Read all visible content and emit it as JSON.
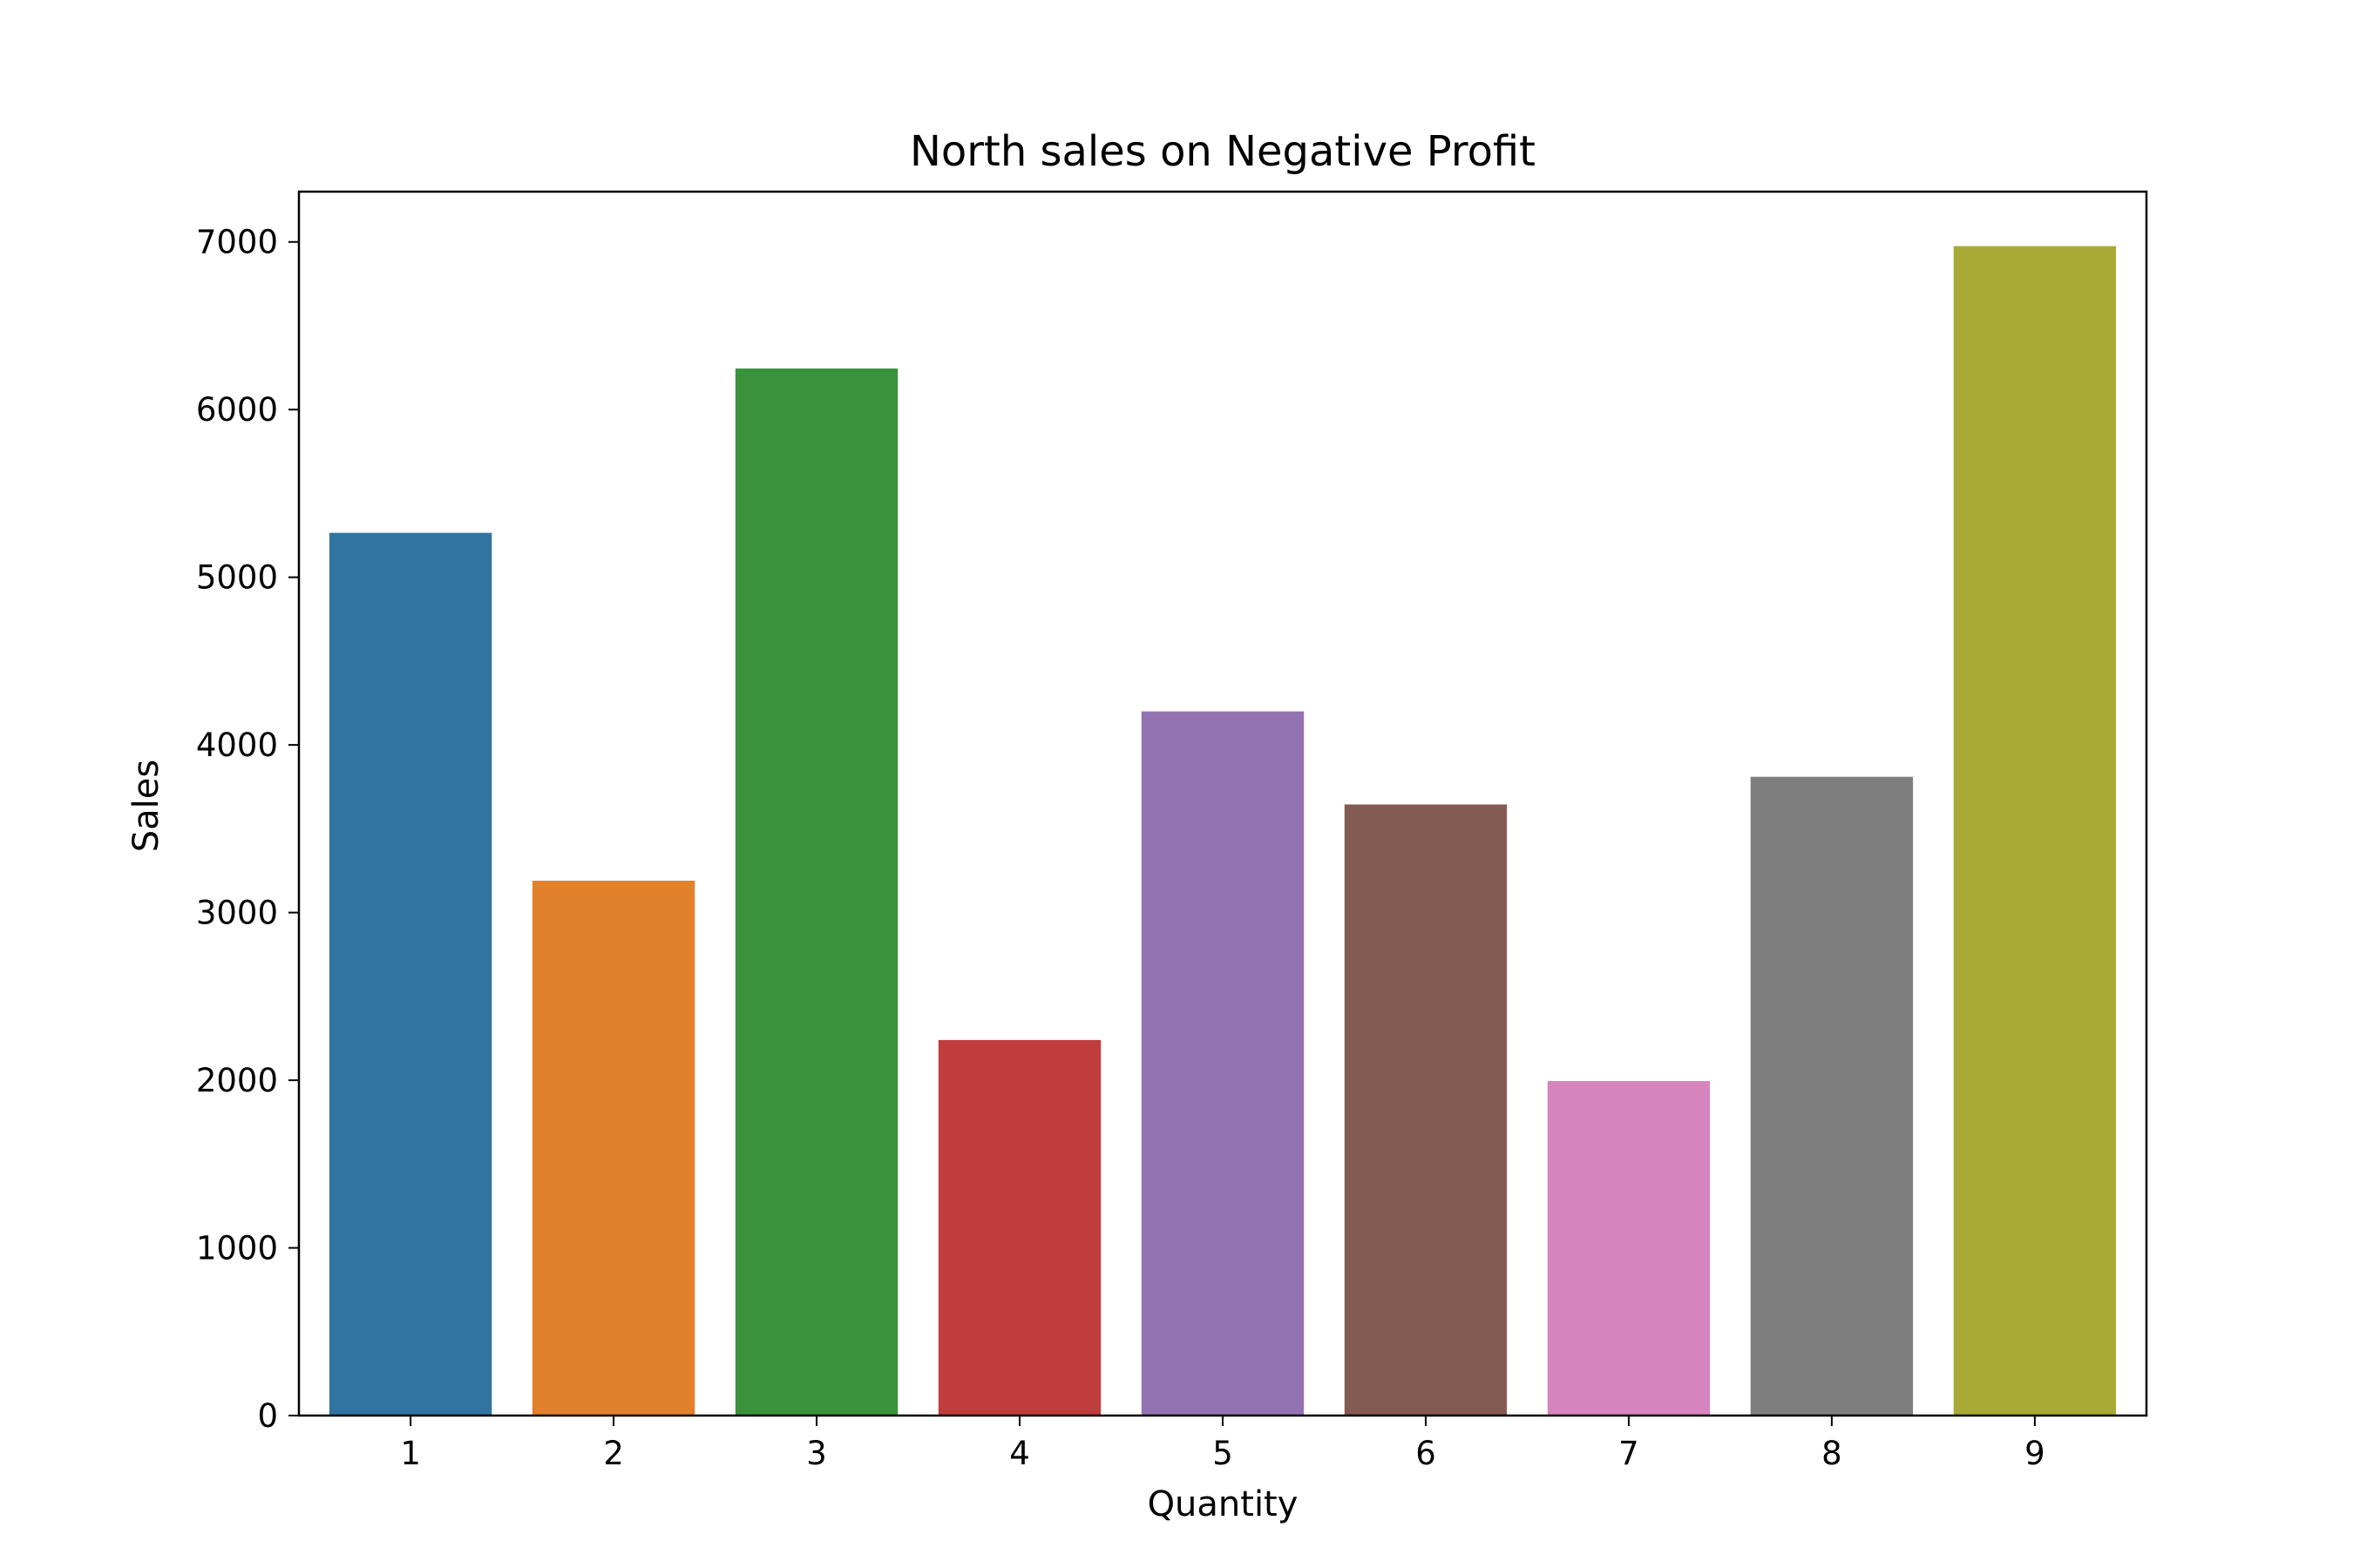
{
  "chart_data": {
    "type": "bar",
    "title": "North sales on Negative Profit",
    "xlabel": "Quantity",
    "ylabel": "Sales",
    "categories": [
      "1",
      "2",
      "3",
      "4",
      "5",
      "6",
      "7",
      "8",
      "9"
    ],
    "values": [
      5265,
      3190,
      6245,
      2240,
      4200,
      3645,
      1995,
      3810,
      6975
    ],
    "colors": [
      "#3274a1",
      "#e1812c",
      "#3a923a",
      "#c03d3e",
      "#9372b2",
      "#845b53",
      "#d684bd",
      "#7f7f7f",
      "#a9aa35"
    ],
    "ylim": [
      0,
      7300
    ],
    "yticks": [
      0,
      1000,
      2000,
      3000,
      4000,
      5000,
      6000,
      7000
    ],
    "grid": false,
    "legend": "none"
  }
}
